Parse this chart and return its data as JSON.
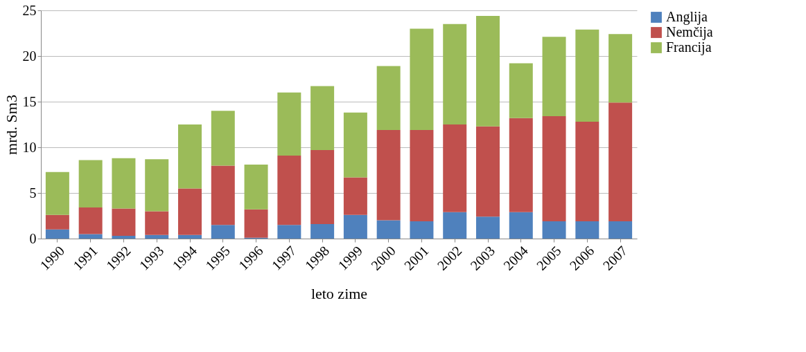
{
  "chart_data": {
    "type": "bar",
    "stacked": true,
    "xlabel": "leto zime",
    "ylabel": "mrd. Sm3",
    "categories": [
      "1990",
      "1991",
      "1992",
      "1993",
      "1994",
      "1995",
      "1996",
      "1997",
      "1998",
      "1999",
      "2000",
      "2001",
      "2002",
      "2003",
      "2004",
      "2005",
      "2006",
      "2007"
    ],
    "series": [
      {
        "name": "Anglija",
        "color": "#4f81bd",
        "values": [
          1.0,
          0.5,
          0.3,
          0.4,
          0.4,
          1.5,
          0.1,
          1.5,
          1.6,
          2.6,
          2.0,
          1.9,
          2.9,
          2.4,
          2.9,
          1.9,
          1.9,
          1.9
        ]
      },
      {
        "name": "Nemčija",
        "color": "#c0504d",
        "values": [
          1.6,
          2.9,
          3.0,
          2.6,
          5.1,
          6.5,
          3.1,
          7.6,
          8.1,
          4.1,
          9.9,
          10.0,
          9.6,
          9.9,
          10.3,
          11.5,
          10.9,
          13.0
        ]
      },
      {
        "name": "Francija",
        "color": "#9bbb59",
        "values": [
          4.7,
          5.2,
          5.5,
          5.7,
          7.0,
          6.0,
          4.9,
          6.9,
          7.0,
          7.1,
          7.0,
          11.1,
          11.0,
          12.1,
          6.0,
          8.7,
          10.1,
          7.5
        ]
      }
    ],
    "ylim": [
      0,
      25
    ],
    "yticks": [
      0,
      5,
      10,
      15,
      20,
      25
    ],
    "grid": "y",
    "legend": "right"
  }
}
